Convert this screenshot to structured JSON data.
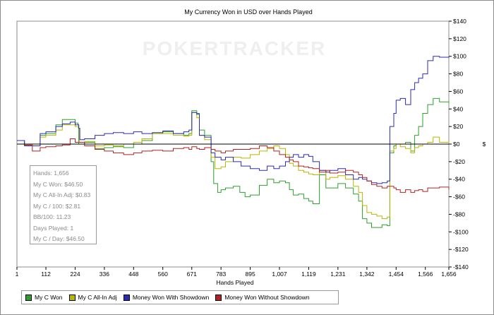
{
  "chart_data": {
    "type": "line",
    "title": "My Currency Won in USD over Hands Played",
    "xlabel": "Hands Played",
    "ylabel": "$",
    "watermark": "POKERTRACKER",
    "xlim": [
      1,
      1656
    ],
    "ylim": [
      -140,
      140
    ],
    "x_ticks": [
      "1",
      "112",
      "224",
      "336",
      "448",
      "560",
      "671",
      "783",
      "895",
      "1,007",
      "1,119",
      "1,231",
      "1,342",
      "1,454",
      "1,566",
      "1,656"
    ],
    "x_tick_values": [
      1,
      112,
      224,
      336,
      448,
      560,
      671,
      783,
      895,
      1007,
      1119,
      1231,
      1342,
      1454,
      1566,
      1656
    ],
    "y_ticks": [
      "$140",
      "$120",
      "$100",
      "$80",
      "$60",
      "$40",
      "$20",
      "$0",
      "-$20",
      "-$40",
      "-$60",
      "-$80",
      "-$100",
      "-$120",
      "-$140"
    ],
    "y_tick_values": [
      140,
      120,
      100,
      80,
      60,
      40,
      20,
      0,
      -20,
      -40,
      -60,
      -80,
      -100,
      -120,
      -140
    ],
    "grid": false,
    "legend_position": "bottom",
    "series": [
      {
        "name": "My C Won",
        "color": "#2ca02c",
        "points": [
          [
            1,
            4
          ],
          [
            30,
            -2
          ],
          [
            60,
            -2
          ],
          [
            90,
            10
          ],
          [
            112,
            12
          ],
          [
            150,
            22
          ],
          [
            175,
            28
          ],
          [
            205,
            28
          ],
          [
            224,
            24
          ],
          [
            235,
            22
          ],
          [
            238,
            0
          ],
          [
            260,
            2
          ],
          [
            300,
            -5
          ],
          [
            336,
            -4
          ],
          [
            370,
            -3
          ],
          [
            410,
            -4
          ],
          [
            448,
            0
          ],
          [
            480,
            4
          ],
          [
            520,
            12
          ],
          [
            560,
            14
          ],
          [
            600,
            12
          ],
          [
            640,
            10
          ],
          [
            660,
            12
          ],
          [
            671,
            38
          ],
          [
            690,
            35
          ],
          [
            700,
            16
          ],
          [
            720,
            10
          ],
          [
            745,
            -20
          ],
          [
            755,
            -45
          ],
          [
            770,
            -55
          ],
          [
            783,
            -52
          ],
          [
            800,
            -50
          ],
          [
            830,
            -48
          ],
          [
            855,
            -55
          ],
          [
            875,
            -60
          ],
          [
            895,
            -58
          ],
          [
            930,
            -47
          ],
          [
            960,
            -40
          ],
          [
            985,
            -44
          ],
          [
            1007,
            -42
          ],
          [
            1030,
            -44
          ],
          [
            1045,
            -52
          ],
          [
            1060,
            -58
          ],
          [
            1080,
            -57
          ],
          [
            1100,
            -62
          ],
          [
            1119,
            -65
          ],
          [
            1135,
            -68
          ],
          [
            1160,
            -35
          ],
          [
            1185,
            -50
          ],
          [
            1200,
            -50
          ],
          [
            1231,
            -45
          ],
          [
            1260,
            -50
          ],
          [
            1290,
            -57
          ],
          [
            1310,
            -65
          ],
          [
            1325,
            -85
          ],
          [
            1342,
            -90
          ],
          [
            1360,
            -95
          ],
          [
            1380,
            -95
          ],
          [
            1400,
            -92
          ],
          [
            1420,
            -93
          ],
          [
            1430,
            -10
          ],
          [
            1445,
            -2
          ],
          [
            1454,
            0
          ],
          [
            1470,
            0
          ],
          [
            1490,
            2
          ],
          [
            1510,
            -8
          ],
          [
            1525,
            10
          ],
          [
            1540,
            20
          ],
          [
            1556,
            35
          ],
          [
            1575,
            45
          ],
          [
            1596,
            52
          ],
          [
            1620,
            48
          ],
          [
            1656,
            46
          ]
        ]
      },
      {
        "name": "My C All-In Adj",
        "color": "#b8b800",
        "points": [
          [
            1,
            4
          ],
          [
            30,
            -2
          ],
          [
            60,
            -2
          ],
          [
            90,
            8
          ],
          [
            112,
            10
          ],
          [
            150,
            16
          ],
          [
            175,
            22
          ],
          [
            205,
            22
          ],
          [
            224,
            20
          ],
          [
            236,
            18
          ],
          [
            240,
            2
          ],
          [
            260,
            3
          ],
          [
            300,
            -2
          ],
          [
            336,
            -1
          ],
          [
            370,
            -2
          ],
          [
            410,
            0
          ],
          [
            448,
            2
          ],
          [
            480,
            6
          ],
          [
            520,
            12
          ],
          [
            560,
            12
          ],
          [
            600,
            10
          ],
          [
            640,
            9
          ],
          [
            660,
            10
          ],
          [
            671,
            36
          ],
          [
            690,
            30
          ],
          [
            700,
            10
          ],
          [
            720,
            5
          ],
          [
            745,
            -15
          ],
          [
            760,
            -28
          ],
          [
            783,
            -26
          ],
          [
            800,
            -20
          ],
          [
            830,
            -15
          ],
          [
            860,
            -16
          ],
          [
            895,
            -12
          ],
          [
            930,
            -8
          ],
          [
            960,
            -5
          ],
          [
            985,
            -2
          ],
          [
            1007,
            -5
          ],
          [
            1030,
            -12
          ],
          [
            1045,
            -22
          ],
          [
            1060,
            -25
          ],
          [
            1080,
            -30
          ],
          [
            1100,
            -32
          ],
          [
            1119,
            -34
          ],
          [
            1135,
            -35
          ],
          [
            1160,
            -30
          ],
          [
            1185,
            -40
          ],
          [
            1200,
            -38
          ],
          [
            1231,
            -36
          ],
          [
            1260,
            -40
          ],
          [
            1290,
            -48
          ],
          [
            1310,
            -55
          ],
          [
            1325,
            -70
          ],
          [
            1342,
            -78
          ],
          [
            1360,
            -80
          ],
          [
            1380,
            -82
          ],
          [
            1400,
            -85
          ],
          [
            1420,
            -83
          ],
          [
            1430,
            -8
          ],
          [
            1445,
            -5
          ],
          [
            1454,
            0
          ],
          [
            1470,
            -3
          ],
          [
            1490,
            -5
          ],
          [
            1510,
            -10
          ],
          [
            1525,
            -4
          ],
          [
            1540,
            -2
          ],
          [
            1556,
            0
          ],
          [
            1575,
            2
          ],
          [
            1596,
            8
          ],
          [
            1620,
            2
          ],
          [
            1656,
            0
          ]
        ]
      },
      {
        "name": "Money Won With Showdown",
        "color": "#2b2bb2",
        "points": [
          [
            1,
            4
          ],
          [
            30,
            -2
          ],
          [
            60,
            -2
          ],
          [
            90,
            12
          ],
          [
            112,
            14
          ],
          [
            150,
            20
          ],
          [
            175,
            23
          ],
          [
            205,
            25
          ],
          [
            224,
            22
          ],
          [
            238,
            18
          ],
          [
            242,
            5
          ],
          [
            260,
            6
          ],
          [
            300,
            10
          ],
          [
            336,
            12
          ],
          [
            370,
            13
          ],
          [
            410,
            12
          ],
          [
            448,
            14
          ],
          [
            480,
            12
          ],
          [
            520,
            13
          ],
          [
            560,
            15
          ],
          [
            600,
            12
          ],
          [
            640,
            14
          ],
          [
            660,
            16
          ],
          [
            671,
            36
          ],
          [
            690,
            34
          ],
          [
            700,
            10
          ],
          [
            720,
            8
          ],
          [
            745,
            -10
          ],
          [
            760,
            -15
          ],
          [
            783,
            -18
          ],
          [
            800,
            -15
          ],
          [
            830,
            -20
          ],
          [
            860,
            -25
          ],
          [
            895,
            -28
          ],
          [
            930,
            -30
          ],
          [
            960,
            -25
          ],
          [
            985,
            -28
          ],
          [
            1007,
            -25
          ],
          [
            1030,
            -20
          ],
          [
            1045,
            -15
          ],
          [
            1060,
            -12
          ],
          [
            1080,
            -15
          ],
          [
            1100,
            -12
          ],
          [
            1119,
            -14
          ],
          [
            1135,
            -20
          ],
          [
            1160,
            -30
          ],
          [
            1185,
            -32
          ],
          [
            1200,
            -30
          ],
          [
            1231,
            -28
          ],
          [
            1260,
            -35
          ],
          [
            1290,
            -40
          ],
          [
            1310,
            -38
          ],
          [
            1325,
            -40
          ],
          [
            1342,
            -42
          ],
          [
            1360,
            -44
          ],
          [
            1380,
            -45
          ],
          [
            1400,
            -44
          ],
          [
            1420,
            -42
          ],
          [
            1430,
            20
          ],
          [
            1445,
            35
          ],
          [
            1454,
            50
          ],
          [
            1470,
            52
          ],
          [
            1490,
            45
          ],
          [
            1510,
            62
          ],
          [
            1525,
            70
          ],
          [
            1540,
            75
          ],
          [
            1556,
            80
          ],
          [
            1575,
            95
          ],
          [
            1596,
            100
          ],
          [
            1620,
            99
          ],
          [
            1656,
            98
          ]
        ]
      },
      {
        "name": "Money Won Without Showdown",
        "color": "#b22222",
        "points": [
          [
            1,
            0
          ],
          [
            30,
            -1
          ],
          [
            60,
            -8
          ],
          [
            90,
            -4
          ],
          [
            112,
            -3
          ],
          [
            150,
            -2
          ],
          [
            175,
            -1
          ],
          [
            205,
            6
          ],
          [
            224,
            2
          ],
          [
            240,
            2
          ],
          [
            260,
            -2
          ],
          [
            300,
            -6
          ],
          [
            336,
            -8
          ],
          [
            370,
            -10
          ],
          [
            410,
            -12
          ],
          [
            448,
            -10
          ],
          [
            480,
            -8
          ],
          [
            520,
            -7
          ],
          [
            560,
            -8
          ],
          [
            600,
            -5
          ],
          [
            640,
            -4
          ],
          [
            660,
            -6
          ],
          [
            671,
            -3
          ],
          [
            690,
            -5
          ],
          [
            700,
            -6
          ],
          [
            720,
            -4
          ],
          [
            745,
            -6
          ],
          [
            760,
            -8
          ],
          [
            783,
            -10
          ],
          [
            800,
            -8
          ],
          [
            830,
            -6
          ],
          [
            860,
            -6
          ],
          [
            895,
            -5
          ],
          [
            930,
            -2
          ],
          [
            960,
            -4
          ],
          [
            985,
            -8
          ],
          [
            1007,
            -12
          ],
          [
            1030,
            -15
          ],
          [
            1045,
            -18
          ],
          [
            1060,
            -20
          ],
          [
            1080,
            -25
          ],
          [
            1100,
            -26
          ],
          [
            1119,
            -27
          ],
          [
            1135,
            -28
          ],
          [
            1160,
            -32
          ],
          [
            1185,
            -30
          ],
          [
            1200,
            -33
          ],
          [
            1231,
            -32
          ],
          [
            1260,
            -30
          ],
          [
            1290,
            -32
          ],
          [
            1310,
            -35
          ],
          [
            1325,
            -38
          ],
          [
            1342,
            -42
          ],
          [
            1360,
            -46
          ],
          [
            1380,
            -48
          ],
          [
            1400,
            -50
          ],
          [
            1420,
            -48
          ],
          [
            1430,
            -48
          ],
          [
            1445,
            -50
          ],
          [
            1454,
            -52
          ],
          [
            1470,
            -55
          ],
          [
            1490,
            -52
          ],
          [
            1510,
            -55
          ],
          [
            1525,
            -53
          ],
          [
            1540,
            -52
          ],
          [
            1556,
            -54
          ],
          [
            1575,
            -50
          ],
          [
            1596,
            -50
          ],
          [
            1620,
            -49
          ],
          [
            1656,
            -52
          ]
        ]
      }
    ]
  },
  "stats": {
    "hands": "Hands: 1,656",
    "won": "My C Won: $46.50",
    "allin": "My C All-In Adj: $0.83",
    "per100": "My C / 100: $2.81",
    "bb100": "BB/100: 11.23",
    "days": "Days Played: 1",
    "perday": "My C / Day: $46.50"
  },
  "legend": {
    "items": [
      {
        "label": "My C Won",
        "color": "#2ca02c"
      },
      {
        "label": "My C All-In Adj",
        "color": "#b8b800"
      },
      {
        "label": "Money Won With Showdown",
        "color": "#2b2bb2"
      },
      {
        "label": "Money Won Without Showdown",
        "color": "#b22222"
      }
    ]
  }
}
